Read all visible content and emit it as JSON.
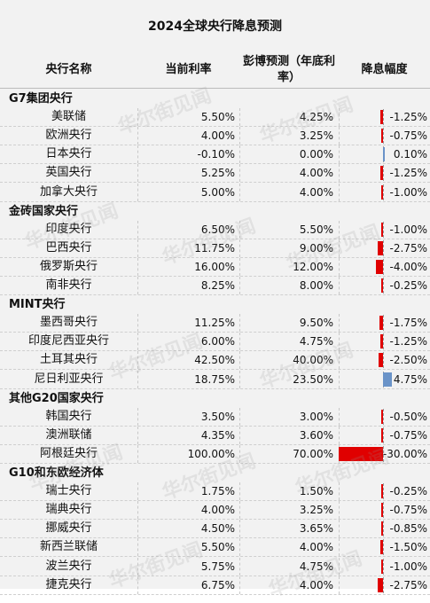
{
  "title": "2024全球央行降息预测",
  "columns": {
    "name": "央行名称",
    "current": "当前利率",
    "forecast": "彭博预测（年底利率）",
    "cut": "降息幅度"
  },
  "watermark": "华尔街见闻",
  "colors": {
    "cut_bar": "#e00000",
    "hike_bar": "#6a93c8"
  },
  "groups": [
    {
      "name": "G7集团央行",
      "rows": [
        {
          "bank": "美联储",
          "current": "5.50%",
          "forecast": "4.25%",
          "cut": "-1.25%",
          "cut_value": -1.25
        },
        {
          "bank": "欧洲央行",
          "current": "4.00%",
          "forecast": "3.25%",
          "cut": "-0.75%",
          "cut_value": -0.75
        },
        {
          "bank": "日本央行",
          "current": "-0.10%",
          "forecast": "0.00%",
          "cut": "0.10%",
          "cut_value": 0.1
        },
        {
          "bank": "英国央行",
          "current": "5.25%",
          "forecast": "4.00%",
          "cut": "-1.25%",
          "cut_value": -1.25
        },
        {
          "bank": "加拿大央行",
          "current": "5.00%",
          "forecast": "4.00%",
          "cut": "-1.00%",
          "cut_value": -1.0
        }
      ]
    },
    {
      "name": "金砖国家央行",
      "rows": [
        {
          "bank": "印度央行",
          "current": "6.50%",
          "forecast": "5.50%",
          "cut": "-1.00%",
          "cut_value": -1.0
        },
        {
          "bank": "巴西央行",
          "current": "11.75%",
          "forecast": "9.00%",
          "cut": "-2.75%",
          "cut_value": -2.75
        },
        {
          "bank": "俄罗斯央行",
          "current": "16.00%",
          "forecast": "12.00%",
          "cut": "-4.00%",
          "cut_value": -4.0
        },
        {
          "bank": "南非央行",
          "current": "8.25%",
          "forecast": "8.00%",
          "cut": "-0.25%",
          "cut_value": -0.25
        }
      ]
    },
    {
      "name": "MINT央行",
      "rows": [
        {
          "bank": "墨西哥央行",
          "current": "11.25%",
          "forecast": "9.50%",
          "cut": "-1.75%",
          "cut_value": -1.75
        },
        {
          "bank": "印度尼西亚央行",
          "current": "6.00%",
          "forecast": "4.75%",
          "cut": "-1.25%",
          "cut_value": -1.25
        },
        {
          "bank": "土耳其央行",
          "current": "42.50%",
          "forecast": "40.00%",
          "cut": "-2.50%",
          "cut_value": -2.5
        },
        {
          "bank": "尼日利亚央行",
          "current": "18.75%",
          "forecast": "23.50%",
          "cut": "4.75%",
          "cut_value": 4.75
        }
      ]
    },
    {
      "name": "其他G20国家央行",
      "rows": [
        {
          "bank": "韩国央行",
          "current": "3.50%",
          "forecast": "3.00%",
          "cut": "-0.50%",
          "cut_value": -0.5
        },
        {
          "bank": "澳洲联储",
          "current": "4.35%",
          "forecast": "3.60%",
          "cut": "-0.75%",
          "cut_value": -0.75
        },
        {
          "bank": "阿根廷央行",
          "current": "100.00%",
          "forecast": "70.00%",
          "cut": "-30.00%",
          "cut_value": -30.0
        }
      ]
    },
    {
      "name": "G10和东欧经济体",
      "rows": [
        {
          "bank": "瑞士央行",
          "current": "1.75%",
          "forecast": "1.50%",
          "cut": "-0.25%",
          "cut_value": -0.25
        },
        {
          "bank": "瑞典央行",
          "current": "4.00%",
          "forecast": "3.25%",
          "cut": "-0.75%",
          "cut_value": -0.75
        },
        {
          "bank": "挪威央行",
          "current": "4.50%",
          "forecast": "3.65%",
          "cut": "-0.85%",
          "cut_value": -0.85
        },
        {
          "bank": "新西兰联储",
          "current": "5.50%",
          "forecast": "4.00%",
          "cut": "-1.50%",
          "cut_value": -1.5
        },
        {
          "bank": "波兰央行",
          "current": "5.75%",
          "forecast": "4.75%",
          "cut": "-1.00%",
          "cut_value": -1.0
        },
        {
          "bank": "捷克央行",
          "current": "6.75%",
          "forecast": "4.00%",
          "cut": "-2.75%",
          "cut_value": -2.75
        }
      ]
    }
  ]
}
